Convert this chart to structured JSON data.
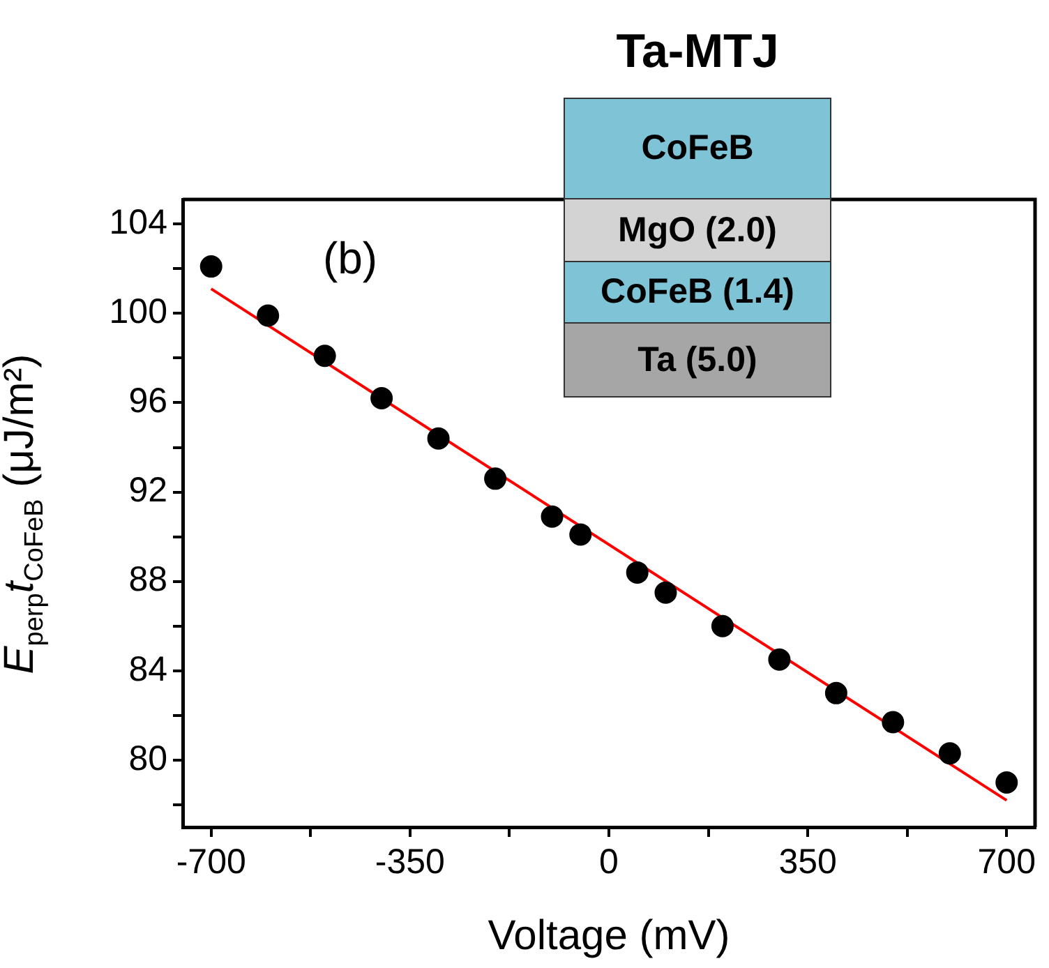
{
  "chart_data": {
    "type": "scatter",
    "title": "Ta-MTJ",
    "xlabel": "Voltage (mV)",
    "ylabel": "E$_{perp}$t$_{CoFeB}$ (μJ/m²)",
    "annotations": [
      "(b)",
      "CoFeB",
      "MgO (2.0)",
      "CoFeB (1.4)",
      "Ta (5.0)"
    ],
    "xlim": [
      -750,
      750
    ],
    "xticks": [
      -700,
      {
        "value": -525,
        "label": null
      },
      -350,
      {
        "value": -175,
        "label": null
      },
      0,
      {
        "value": 175,
        "label": null
      },
      350,
      {
        "value": 525,
        "label": null
      },
      700
    ],
    "ylim": [
      77,
      105.1
    ],
    "yticks": [
      {
        "value": 78,
        "label": null
      },
      80,
      {
        "value": 82,
        "label": null
      },
      84,
      {
        "value": 86,
        "label": null
      },
      88,
      {
        "value": 90,
        "label": null
      },
      92,
      {
        "value": 94,
        "label": null
      },
      96,
      {
        "value": 98,
        "label": null
      },
      100,
      {
        "value": 102,
        "label": null
      },
      104
    ],
    "grid": false,
    "legend": false,
    "series": [
      {
        "color": "#000000",
        "marker": "circle",
        "x": [
          -700,
          -600,
          -500,
          -400,
          -300,
          -200,
          -100,
          -50,
          50,
          100,
          200,
          300,
          400,
          500,
          600,
          700
        ],
        "values": [
          102.1,
          99.9,
          98.1,
          96.2,
          94.4,
          92.6,
          90.9,
          90.1,
          88.4,
          87.5,
          86.0,
          84.5,
          83.0,
          81.7,
          80.3,
          79.0
        ]
      },
      {
        "type": "line",
        "color": "#ff0000",
        "marker": "none",
        "x": [
          -700,
          700
        ],
        "values": [
          101.1,
          78.2
        ]
      }
    ]
  }
}
